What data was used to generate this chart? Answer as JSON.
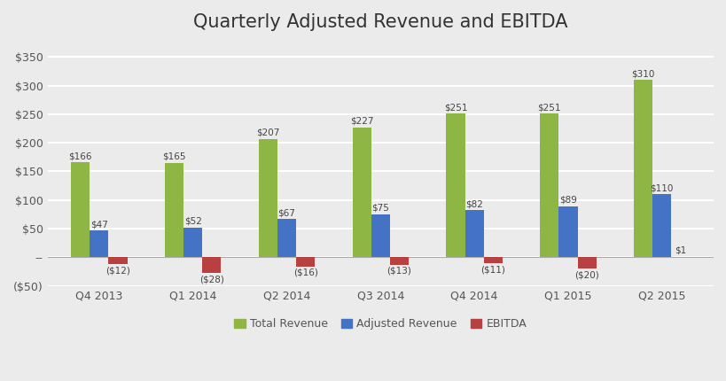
{
  "title": "Quarterly Adjusted Revenue and EBITDA",
  "categories": [
    "Q4 2013",
    "Q1 2014",
    "Q2 2014",
    "Q3 2014",
    "Q4 2014",
    "Q1 2015",
    "Q2 2015"
  ],
  "total_revenue": [
    166,
    165,
    207,
    227,
    251,
    251,
    310
  ],
  "adjusted_revenue": [
    47,
    52,
    67,
    75,
    82,
    89,
    110
  ],
  "ebitda": [
    -12,
    -28,
    -16,
    -13,
    -11,
    -20,
    1
  ],
  "total_revenue_labels": [
    "$166",
    "$165",
    "$207",
    "$227",
    "$251",
    "$251",
    "$310"
  ],
  "adjusted_revenue_labels": [
    "$47",
    "$52",
    "$67",
    "$75",
    "$82",
    "$89",
    "$110"
  ],
  "ebitda_labels": [
    "($12)",
    "($28)",
    "($16)",
    "($13)",
    "($11)",
    "($20)",
    "$1"
  ],
  "color_total": "#8db645",
  "color_adjusted": "#4472c4",
  "color_ebitda": "#b94040",
  "ylim_min": -50,
  "ylim_max": 380,
  "yticks": [
    -50,
    0,
    50,
    100,
    150,
    200,
    250,
    300,
    350
  ],
  "ytick_labels": [
    "($50)",
    "--",
    "$50",
    "$100",
    "$150",
    "$200",
    "$250",
    "$300",
    "$350"
  ],
  "legend_labels": [
    "Total Revenue",
    "Adjusted Revenue",
    "EBITDA"
  ],
  "background_color": "#ebebeb",
  "grid_color": "#ffffff",
  "bar_width": 0.2,
  "title_fontsize": 15
}
